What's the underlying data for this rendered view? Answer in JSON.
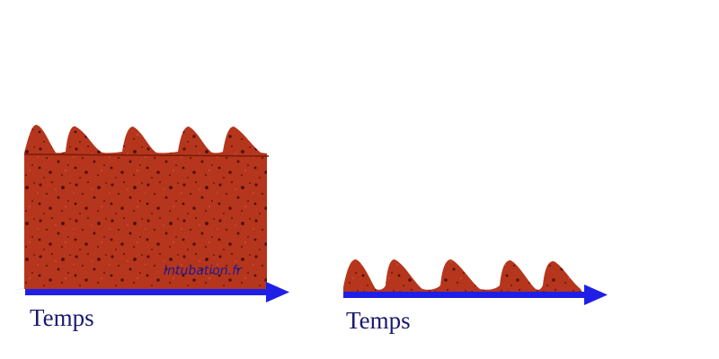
{
  "left_panel": {
    "time_label": "Temps"
  },
  "right_panel": {
    "time_label": "Temps"
  },
  "watermark": "Intubation.fr",
  "colors": {
    "fill": "#b5361c",
    "fill_dark": "#5a0f06",
    "arrow": "#1f1fe6",
    "label": "#1a1a6e"
  }
}
